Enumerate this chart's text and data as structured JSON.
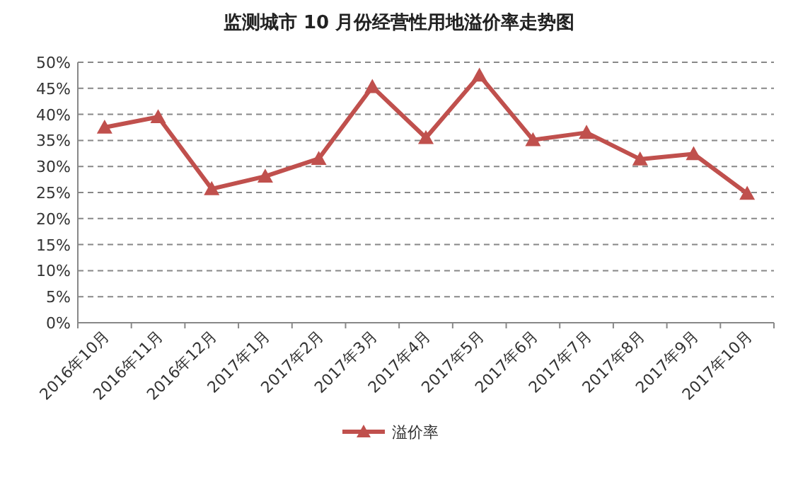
{
  "chart_data": {
    "type": "line",
    "title": "监测城市 10 月份经营性用地溢价率走势图",
    "categories": [
      "2016年10月",
      "2016年11月",
      "2016年12月",
      "2017年1月",
      "2017年2月",
      "2017年3月",
      "2017年4月",
      "2017年5月",
      "2017年6月",
      "2017年7月",
      "2017年8月",
      "2017年9月",
      "2017年10月"
    ],
    "series": [
      {
        "name": "溢价率",
        "color": "#c0504d",
        "values": [
          37.5,
          39.5,
          25.7,
          28.1,
          31.5,
          45.3,
          35.5,
          47.5,
          35.1,
          36.5,
          31.4,
          32.4,
          24.8
        ]
      }
    ],
    "ylim": [
      0,
      50
    ],
    "yticks": [
      {
        "value": 0,
        "label": "0%"
      },
      {
        "value": 5,
        "label": "5%"
      },
      {
        "value": 10,
        "label": "10%"
      },
      {
        "value": 15,
        "label": "15%"
      },
      {
        "value": 20,
        "label": "20%"
      },
      {
        "value": 25,
        "label": "25%"
      },
      {
        "value": 30,
        "label": "30%"
      },
      {
        "value": 35,
        "label": "35%"
      },
      {
        "value": 40,
        "label": "40%"
      },
      {
        "value": 45,
        "label": "45%"
      },
      {
        "value": 50,
        "label": "50%"
      }
    ],
    "grid": "y",
    "legend": "bottom",
    "marker": "triangle",
    "line_style": "solid"
  }
}
